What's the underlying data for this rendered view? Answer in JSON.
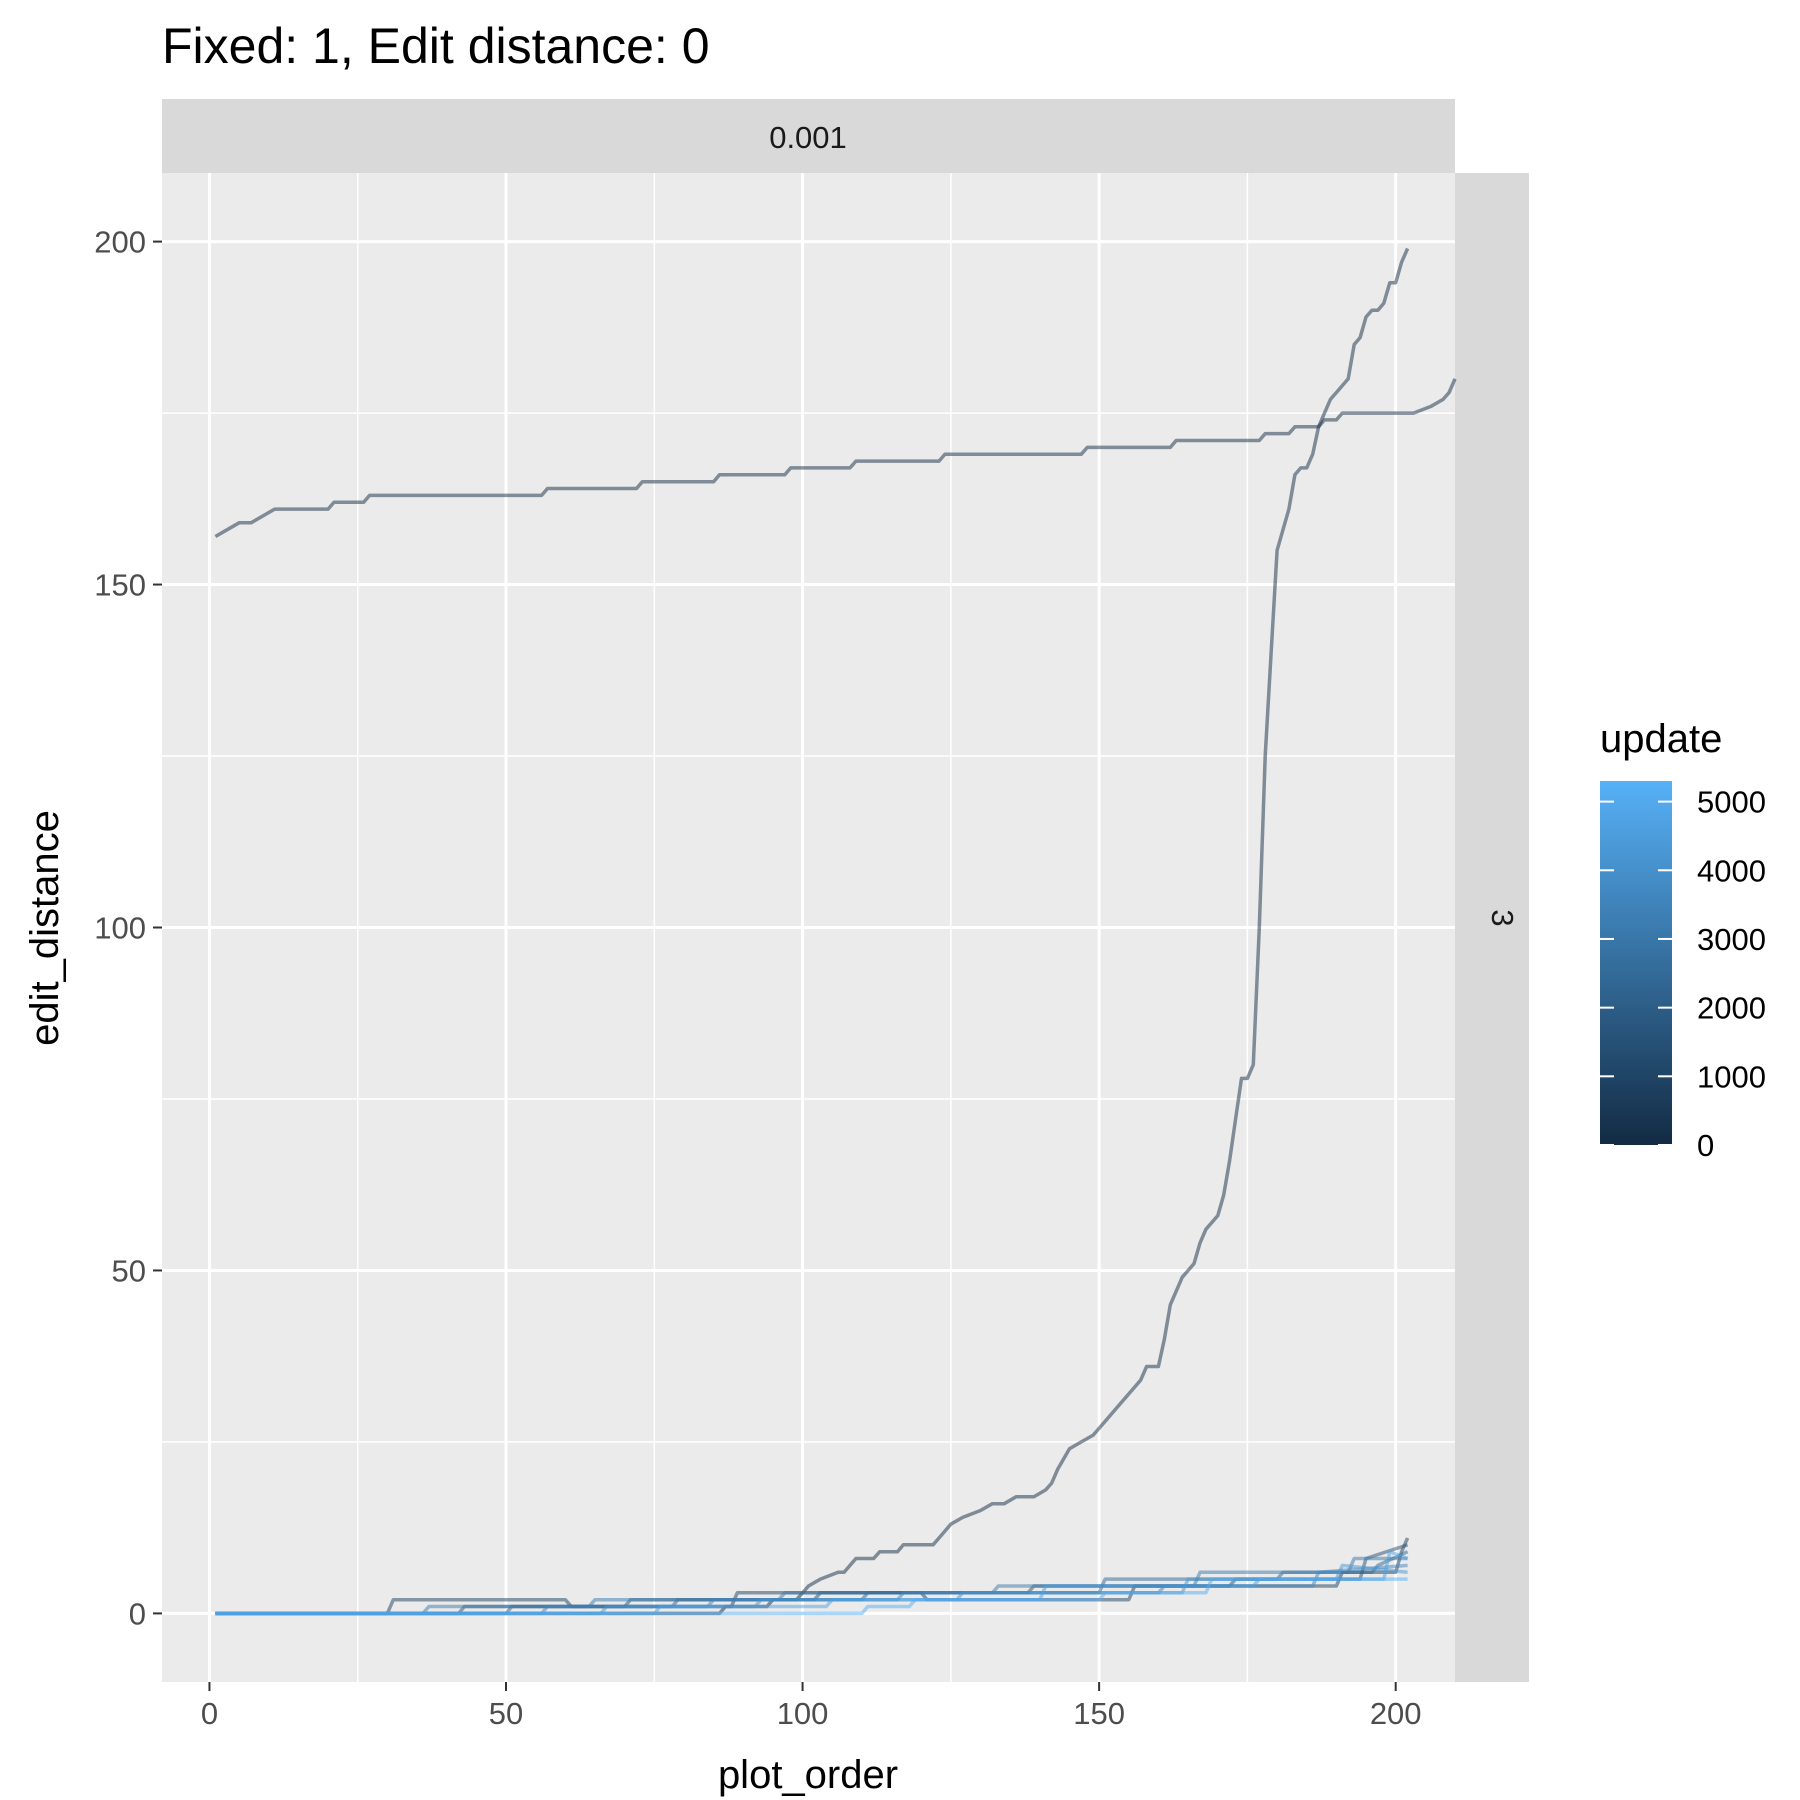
{
  "chart_data": {
    "type": "line",
    "title": "Fixed: 1, Edit distance: 0",
    "xlabel": "plot_order",
    "ylabel": "edit_distance",
    "facet_col_label": "0.001",
    "facet_row_label": "3",
    "xlim": [
      -8,
      210
    ],
    "ylim": [
      -10,
      210
    ],
    "x_ticks": [
      0,
      50,
      100,
      150,
      200
    ],
    "y_ticks": [
      0,
      50,
      100,
      150,
      200
    ],
    "x_tick_labels": [
      "0",
      "50",
      "100",
      "150",
      "200"
    ],
    "y_tick_labels": [
      "0",
      "50",
      "100",
      "150",
      "200"
    ],
    "grid": true,
    "legend": {
      "title": "update",
      "position": "right",
      "min": 0,
      "max": 5300,
      "breaks": [
        0,
        1000,
        2000,
        3000,
        4000,
        5000
      ],
      "break_labels": [
        "0",
        "1000",
        "2000",
        "3000",
        "4000",
        "5000"
      ],
      "low_color": "#132B43",
      "high_color": "#56B1F7"
    },
    "series": [
      {
        "update": 0,
        "points": [
          [
            1,
            157
          ],
          [
            3,
            158
          ],
          [
            5,
            159
          ],
          [
            7,
            159
          ],
          [
            9,
            160
          ],
          [
            11,
            161
          ],
          [
            20,
            161
          ],
          [
            21,
            162
          ],
          [
            26,
            162
          ],
          [
            27,
            163
          ],
          [
            56,
            163
          ],
          [
            57,
            164
          ],
          [
            72,
            164
          ],
          [
            73,
            165
          ],
          [
            85,
            165
          ],
          [
            86,
            166
          ],
          [
            97,
            166
          ],
          [
            98,
            167
          ],
          [
            108,
            167
          ],
          [
            109,
            168
          ],
          [
            123,
            168
          ],
          [
            124,
            169
          ],
          [
            147,
            169
          ],
          [
            148,
            170
          ],
          [
            162,
            170
          ],
          [
            163,
            171
          ],
          [
            177,
            171
          ],
          [
            178,
            172
          ],
          [
            182,
            172
          ],
          [
            183,
            173
          ],
          [
            187,
            173
          ],
          [
            188,
            174
          ],
          [
            190,
            174
          ],
          [
            191,
            175
          ],
          [
            201,
            175
          ],
          [
            203,
            175
          ],
          [
            206,
            176
          ],
          [
            208,
            177
          ],
          [
            209,
            178
          ],
          [
            210,
            180
          ]
        ]
      },
      {
        "update": 0,
        "points": [
          [
            1,
            0
          ],
          [
            86,
            0
          ],
          [
            87,
            1
          ],
          [
            94,
            1
          ],
          [
            95,
            2
          ],
          [
            99,
            2
          ],
          [
            100,
            3
          ],
          [
            101,
            4
          ],
          [
            103,
            5
          ],
          [
            106,
            6
          ],
          [
            107,
            6
          ],
          [
            108,
            7
          ],
          [
            109,
            8
          ],
          [
            112,
            8
          ],
          [
            113,
            9
          ],
          [
            116,
            9
          ],
          [
            117,
            10
          ],
          [
            122,
            10
          ],
          [
            123,
            11
          ],
          [
            124,
            12
          ],
          [
            125,
            13
          ],
          [
            127,
            14
          ],
          [
            130,
            15
          ],
          [
            132,
            16
          ],
          [
            134,
            16
          ],
          [
            136,
            17
          ],
          [
            139,
            17
          ],
          [
            141,
            18
          ],
          [
            142,
            19
          ],
          [
            143,
            21
          ],
          [
            145,
            24
          ],
          [
            147,
            25
          ],
          [
            149,
            26
          ],
          [
            151,
            28
          ],
          [
            153,
            30
          ],
          [
            155,
            32
          ],
          [
            157,
            34
          ],
          [
            158,
            36
          ],
          [
            160,
            36
          ],
          [
            161,
            40
          ],
          [
            162,
            45
          ],
          [
            164,
            49
          ],
          [
            165,
            50
          ],
          [
            166,
            51
          ],
          [
            167,
            54
          ],
          [
            168,
            56
          ],
          [
            170,
            58
          ],
          [
            171,
            61
          ],
          [
            172,
            66
          ],
          [
            173,
            72
          ],
          [
            174,
            78
          ],
          [
            175,
            78
          ],
          [
            176,
            80
          ],
          [
            177,
            100
          ],
          [
            178,
            125
          ],
          [
            179,
            140
          ],
          [
            180,
            155
          ],
          [
            181,
            158
          ],
          [
            182,
            161
          ],
          [
            183,
            166
          ],
          [
            184,
            167
          ],
          [
            185,
            167
          ],
          [
            186,
            169
          ],
          [
            187,
            173
          ],
          [
            188,
            175
          ],
          [
            189,
            177
          ],
          [
            190,
            178
          ],
          [
            191,
            179
          ],
          [
            192,
            180
          ],
          [
            193,
            185
          ],
          [
            194,
            186
          ],
          [
            195,
            189
          ],
          [
            196,
            190
          ],
          [
            197,
            190
          ],
          [
            198,
            191
          ],
          [
            199,
            194
          ],
          [
            200,
            194
          ],
          [
            201,
            197
          ],
          [
            202,
            199
          ]
        ]
      },
      {
        "update": 800,
        "points": [
          [
            1,
            0
          ],
          [
            30,
            0
          ],
          [
            31,
            2
          ],
          [
            60,
            2
          ],
          [
            61,
            1
          ],
          [
            88,
            1
          ],
          [
            89,
            3
          ],
          [
            120,
            3
          ],
          [
            121,
            2
          ],
          [
            155,
            2
          ],
          [
            156,
            4
          ],
          [
            190,
            4
          ],
          [
            191,
            6
          ],
          [
            200,
            6
          ],
          [
            201,
            9
          ],
          [
            202,
            11
          ]
        ]
      },
      {
        "update": 1500,
        "points": [
          [
            1,
            0
          ],
          [
            42,
            0
          ],
          [
            43,
            1
          ],
          [
            70,
            1
          ],
          [
            71,
            2
          ],
          [
            102,
            2
          ],
          [
            103,
            3
          ],
          [
            138,
            3
          ],
          [
            139,
            4
          ],
          [
            172,
            4
          ],
          [
            173,
            5
          ],
          [
            194,
            5
          ],
          [
            195,
            8
          ],
          [
            202,
            10
          ]
        ]
      },
      {
        "update": 2300,
        "points": [
          [
            1,
            0
          ],
          [
            50,
            0
          ],
          [
            51,
            1
          ],
          [
            78,
            1
          ],
          [
            79,
            2
          ],
          [
            110,
            2
          ],
          [
            111,
            3
          ],
          [
            150,
            3
          ],
          [
            151,
            5
          ],
          [
            180,
            5
          ],
          [
            181,
            6
          ],
          [
            196,
            6
          ],
          [
            197,
            7
          ],
          [
            202,
            9
          ]
        ]
      },
      {
        "update": 3000,
        "points": [
          [
            1,
            0
          ],
          [
            36,
            0
          ],
          [
            37,
            1
          ],
          [
            64,
            1
          ],
          [
            65,
            2
          ],
          [
            96,
            2
          ],
          [
            97,
            3
          ],
          [
            132,
            3
          ],
          [
            133,
            4
          ],
          [
            166,
            4
          ],
          [
            167,
            6
          ],
          [
            192,
            6
          ],
          [
            193,
            8
          ],
          [
            202,
            8
          ]
        ]
      },
      {
        "update": 3600,
        "points": [
          [
            1,
            0
          ],
          [
            56,
            0
          ],
          [
            57,
            1
          ],
          [
            84,
            1
          ],
          [
            85,
            2
          ],
          [
            116,
            2
          ],
          [
            117,
            3
          ],
          [
            160,
            3
          ],
          [
            161,
            4
          ],
          [
            186,
            4
          ],
          [
            187,
            6
          ],
          [
            202,
            7
          ]
        ]
      },
      {
        "update": 4200,
        "points": [
          [
            1,
            0
          ],
          [
            66,
            0
          ],
          [
            67,
            1
          ],
          [
            92,
            1
          ],
          [
            93,
            2
          ],
          [
            126,
            2
          ],
          [
            127,
            3
          ],
          [
            164,
            3
          ],
          [
            165,
            5
          ],
          [
            190,
            5
          ],
          [
            191,
            7
          ],
          [
            202,
            6
          ]
        ]
      },
      {
        "update": 4700,
        "points": [
          [
            1,
            0
          ],
          [
            75,
            0
          ],
          [
            76,
            1
          ],
          [
            104,
            1
          ],
          [
            105,
            2
          ],
          [
            140,
            2
          ],
          [
            141,
            4
          ],
          [
            176,
            4
          ],
          [
            177,
            5
          ],
          [
            198,
            5
          ],
          [
            199,
            9
          ],
          [
            202,
            8
          ]
        ]
      },
      {
        "update": 5200,
        "points": [
          [
            1,
            0
          ],
          [
            110,
            0
          ],
          [
            111,
            1
          ],
          [
            118,
            1
          ],
          [
            119,
            2
          ],
          [
            150,
            2
          ],
          [
            151,
            3
          ],
          [
            168,
            3
          ],
          [
            169,
            5
          ],
          [
            202,
            5
          ]
        ]
      }
    ]
  }
}
